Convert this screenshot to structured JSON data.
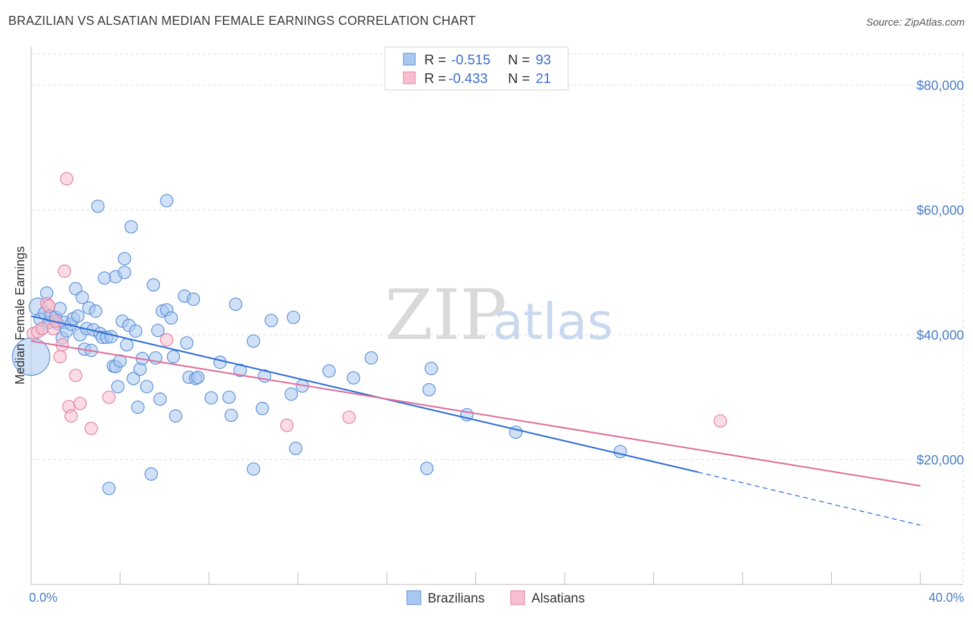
{
  "title": "BRAZILIAN VS ALSATIAN MEDIAN FEMALE EARNINGS CORRELATION CHART",
  "source": "Source: ZipAtlas.com",
  "watermark": {
    "zip": "ZIP",
    "atlas": "atlas"
  },
  "colors": {
    "brazilians_fill": "#a9c8f0",
    "brazilians_stroke": "#5b8fd8",
    "brazilians_line": "#2f6fd6",
    "alsatians_fill": "#f7bfd0",
    "alsatians_stroke": "#e67fa0",
    "alsatians_line": "#e0709a",
    "grid": "#dddddd",
    "tick_label": "#4a7ec8"
  },
  "legend": {
    "rows": [
      {
        "r_label": "R =",
        "r_value": "-0.515",
        "n_label": "N =",
        "n_value": "93"
      },
      {
        "r_label": "R =",
        "r_value": "-0.433",
        "n_label": "N =",
        "n_value": "21"
      }
    ]
  },
  "chart_data": {
    "type": "scatter",
    "ylabel": "Median Female Earnings",
    "xlabel": "",
    "xlim": [
      0,
      0.4
    ],
    "ylim": [
      0,
      85000
    ],
    "x_tick_labels": [
      {
        "value": 0,
        "label": "0.0%"
      },
      {
        "value": 0.4,
        "label": "40.0%"
      }
    ],
    "y_tick_labels": [
      {
        "value": 20000,
        "label": "$20,000"
      },
      {
        "value": 40000,
        "label": "$40,000"
      },
      {
        "value": 60000,
        "label": "$60,000"
      },
      {
        "value": 80000,
        "label": "$80,000"
      }
    ],
    "grid": "horizontal dashed",
    "legend_placement": "top-center",
    "series": [
      {
        "name": "Brazilians",
        "r": -0.515,
        "n": 93,
        "trend": {
          "x0": 0.0,
          "y0": 43000,
          "x1": 0.3,
          "y1": 18000,
          "dashed_to_x": 0.4,
          "dashed_to_y": 9500
        },
        "points": [
          [
            0.0,
            36500,
            3
          ],
          [
            0.003,
            44500,
            1.4
          ],
          [
            0.004,
            42500,
            1
          ],
          [
            0.005,
            41000,
            1
          ],
          [
            0.006,
            43500,
            1
          ],
          [
            0.007,
            46700,
            1
          ],
          [
            0.008,
            42000,
            1
          ],
          [
            0.009,
            43000,
            1
          ],
          [
            0.011,
            42800,
            1
          ],
          [
            0.012,
            41800,
            1
          ],
          [
            0.013,
            44200,
            1
          ],
          [
            0.014,
            39500,
            1
          ],
          [
            0.015,
            42000,
            1
          ],
          [
            0.016,
            40600,
            1
          ],
          [
            0.018,
            41700,
            1
          ],
          [
            0.019,
            42600,
            1
          ],
          [
            0.02,
            47400,
            1
          ],
          [
            0.021,
            43000,
            1
          ],
          [
            0.022,
            40000,
            1
          ],
          [
            0.023,
            46000,
            1
          ],
          [
            0.024,
            37700,
            1
          ],
          [
            0.025,
            41000,
            1
          ],
          [
            0.026,
            44300,
            1
          ],
          [
            0.027,
            37500,
            1
          ],
          [
            0.028,
            40800,
            1
          ],
          [
            0.029,
            43800,
            1
          ],
          [
            0.03,
            60600,
            1
          ],
          [
            0.031,
            40200,
            1
          ],
          [
            0.032,
            39600,
            1
          ],
          [
            0.033,
            49100,
            1
          ],
          [
            0.034,
            39600,
            1
          ],
          [
            0.035,
            15400,
            1
          ],
          [
            0.036,
            39700,
            1
          ],
          [
            0.037,
            35000,
            1
          ],
          [
            0.038,
            34900,
            1
          ],
          [
            0.038,
            49300,
            1
          ],
          [
            0.039,
            31700,
            1
          ],
          [
            0.04,
            35800,
            1
          ],
          [
            0.041,
            42200,
            1
          ],
          [
            0.042,
            50000,
            1
          ],
          [
            0.042,
            52200,
            1
          ],
          [
            0.043,
            38400,
            1
          ],
          [
            0.044,
            41500,
            1
          ],
          [
            0.045,
            57300,
            1
          ],
          [
            0.046,
            33000,
            1
          ],
          [
            0.047,
            40600,
            1
          ],
          [
            0.048,
            28400,
            1
          ],
          [
            0.049,
            34500,
            1
          ],
          [
            0.05,
            36200,
            1
          ],
          [
            0.052,
            31700,
            1
          ],
          [
            0.054,
            17700,
            1
          ],
          [
            0.055,
            48000,
            1
          ],
          [
            0.056,
            36300,
            1
          ],
          [
            0.057,
            40700,
            1
          ],
          [
            0.058,
            29700,
            1
          ],
          [
            0.059,
            43800,
            1
          ],
          [
            0.061,
            61500,
            1
          ],
          [
            0.061,
            44000,
            1
          ],
          [
            0.063,
            42700,
            1
          ],
          [
            0.064,
            36500,
            1
          ],
          [
            0.065,
            27000,
            1
          ],
          [
            0.069,
            46200,
            1
          ],
          [
            0.07,
            38700,
            1
          ],
          [
            0.071,
            33200,
            1
          ],
          [
            0.073,
            45700,
            1
          ],
          [
            0.074,
            33000,
            1
          ],
          [
            0.075,
            33200,
            1
          ],
          [
            0.081,
            29900,
            1
          ],
          [
            0.085,
            35600,
            1
          ],
          [
            0.089,
            30000,
            1
          ],
          [
            0.09,
            27100,
            1
          ],
          [
            0.092,
            44900,
            1
          ],
          [
            0.094,
            34300,
            1
          ],
          [
            0.1,
            39000,
            1
          ],
          [
            0.1,
            18500,
            1
          ],
          [
            0.104,
            28200,
            1
          ],
          [
            0.105,
            33400,
            1
          ],
          [
            0.108,
            42300,
            1
          ],
          [
            0.117,
            30500,
            1
          ],
          [
            0.118,
            42800,
            1
          ],
          [
            0.119,
            21800,
            1
          ],
          [
            0.122,
            31800,
            1
          ],
          [
            0.134,
            34200,
            1
          ],
          [
            0.145,
            33100,
            1
          ],
          [
            0.153,
            36300,
            1
          ],
          [
            0.178,
            18600,
            1
          ],
          [
            0.179,
            31200,
            1
          ],
          [
            0.18,
            34600,
            1
          ],
          [
            0.196,
            27200,
            1
          ],
          [
            0.218,
            24400,
            1
          ],
          [
            0.265,
            21300,
            1
          ]
        ]
      },
      {
        "name": "Alsatians",
        "r": -0.433,
        "n": 21,
        "trend": {
          "x0": 0.0,
          "y0": 39000,
          "x1": 0.4,
          "y1": 15800
        },
        "points": [
          [
            0.001,
            40200,
            1
          ],
          [
            0.003,
            40500,
            1
          ],
          [
            0.005,
            41000,
            1
          ],
          [
            0.007,
            45000,
            1
          ],
          [
            0.008,
            44600,
            1
          ],
          [
            0.01,
            41000,
            1
          ],
          [
            0.011,
            42200,
            1
          ],
          [
            0.013,
            36500,
            1
          ],
          [
            0.014,
            38400,
            1
          ],
          [
            0.015,
            50200,
            1
          ],
          [
            0.016,
            65000,
            1
          ],
          [
            0.017,
            28500,
            1
          ],
          [
            0.018,
            27000,
            1
          ],
          [
            0.02,
            33500,
            1
          ],
          [
            0.022,
            29000,
            1
          ],
          [
            0.027,
            25000,
            1
          ],
          [
            0.035,
            30000,
            1
          ],
          [
            0.061,
            39200,
            1
          ],
          [
            0.115,
            25500,
            1
          ],
          [
            0.143,
            26800,
            1
          ],
          [
            0.31,
            26200,
            1
          ]
        ]
      }
    ]
  }
}
